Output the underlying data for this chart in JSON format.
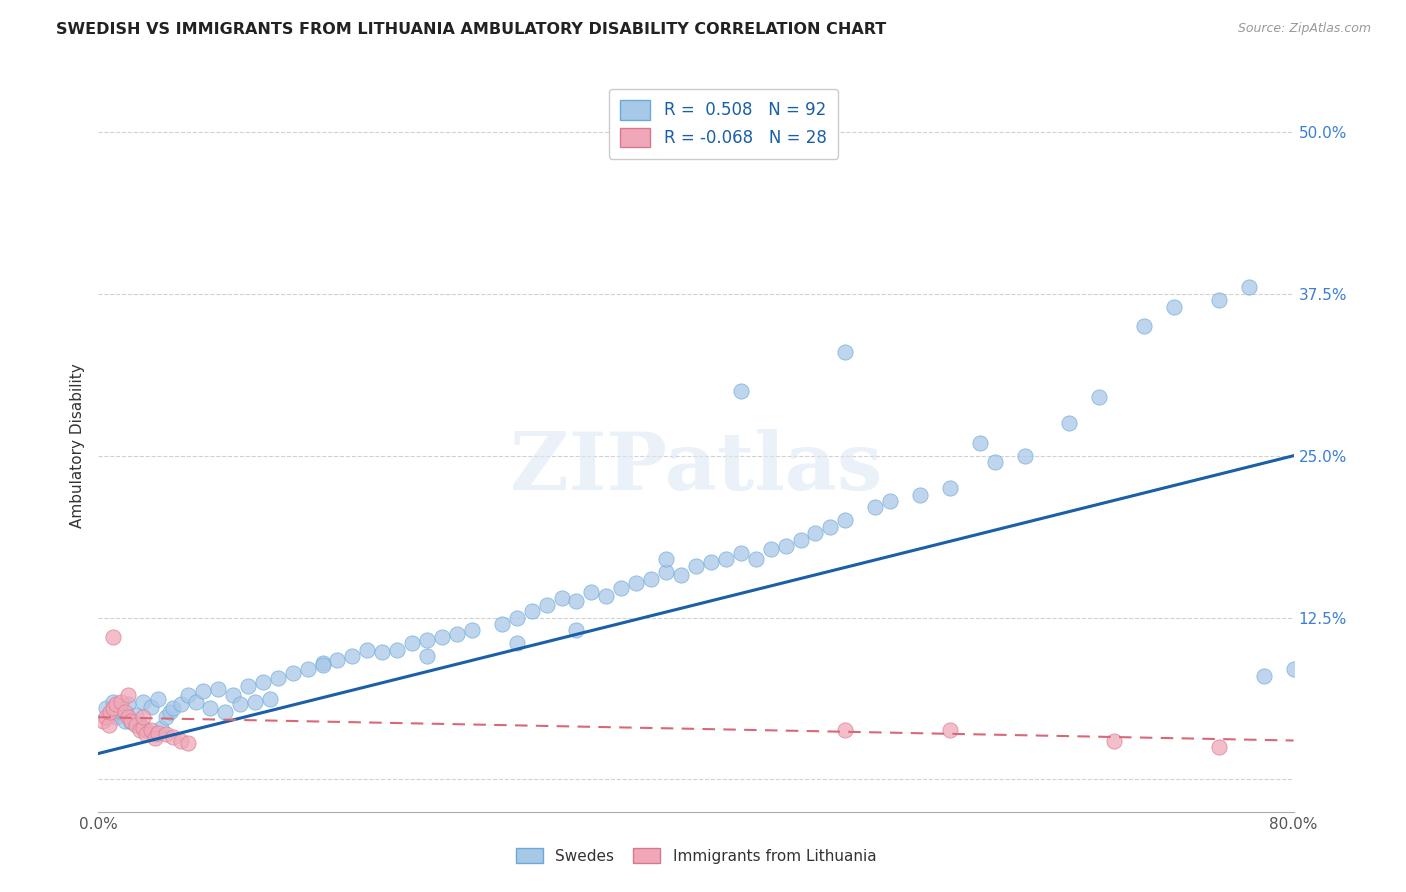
{
  "title": "SWEDISH VS IMMIGRANTS FROM LITHUANIA AMBULATORY DISABILITY CORRELATION CHART",
  "source": "Source: ZipAtlas.com",
  "ylabel": "Ambulatory Disability",
  "xlim": [
    0.0,
    0.8
  ],
  "ylim": [
    -0.025,
    0.54
  ],
  "blue_R": 0.508,
  "blue_N": 92,
  "pink_R": -0.068,
  "pink_N": 28,
  "blue_color": "#a8c8e8",
  "blue_edge_color": "#6aaad8",
  "pink_color": "#f0a8b8",
  "pink_edge_color": "#d87890",
  "trend_blue_color": "#1a5fa8",
  "trend_pink_color": "#d86878",
  "watermark": "ZIPatlas",
  "blue_trend_x0": 0.0,
  "blue_trend_y0": 0.02,
  "blue_trend_x1": 0.8,
  "blue_trend_y1": 0.25,
  "pink_trend_x0": 0.0,
  "pink_trend_y0": 0.048,
  "pink_trend_x1": 0.8,
  "pink_trend_y1": 0.03,
  "blue_scatter_x": [
    0.005,
    0.008,
    0.01,
    0.012,
    0.015,
    0.018,
    0.02,
    0.022,
    0.025,
    0.028,
    0.03,
    0.032,
    0.035,
    0.038,
    0.04,
    0.042,
    0.045,
    0.048,
    0.05,
    0.055,
    0.06,
    0.065,
    0.07,
    0.075,
    0.08,
    0.085,
    0.09,
    0.095,
    0.1,
    0.105,
    0.11,
    0.115,
    0.12,
    0.13,
    0.14,
    0.15,
    0.16,
    0.17,
    0.18,
    0.19,
    0.2,
    0.21,
    0.22,
    0.23,
    0.24,
    0.25,
    0.27,
    0.28,
    0.29,
    0.3,
    0.31,
    0.32,
    0.33,
    0.34,
    0.35,
    0.36,
    0.37,
    0.38,
    0.39,
    0.4,
    0.41,
    0.42,
    0.43,
    0.44,
    0.45,
    0.46,
    0.47,
    0.48,
    0.49,
    0.5,
    0.52,
    0.53,
    0.55,
    0.57,
    0.59,
    0.6,
    0.62,
    0.65,
    0.67,
    0.7,
    0.72,
    0.75,
    0.77,
    0.78,
    0.8,
    0.5,
    0.43,
    0.38,
    0.32,
    0.28,
    0.22,
    0.15
  ],
  "blue_scatter_y": [
    0.055,
    0.05,
    0.06,
    0.048,
    0.052,
    0.045,
    0.058,
    0.044,
    0.05,
    0.042,
    0.06,
    0.038,
    0.056,
    0.035,
    0.062,
    0.04,
    0.048,
    0.052,
    0.055,
    0.058,
    0.065,
    0.06,
    0.068,
    0.055,
    0.07,
    0.052,
    0.065,
    0.058,
    0.072,
    0.06,
    0.075,
    0.062,
    0.078,
    0.082,
    0.085,
    0.09,
    0.092,
    0.095,
    0.1,
    0.098,
    0.1,
    0.105,
    0.108,
    0.11,
    0.112,
    0.115,
    0.12,
    0.125,
    0.13,
    0.135,
    0.14,
    0.138,
    0.145,
    0.142,
    0.148,
    0.152,
    0.155,
    0.16,
    0.158,
    0.165,
    0.168,
    0.17,
    0.175,
    0.17,
    0.178,
    0.18,
    0.185,
    0.19,
    0.195,
    0.2,
    0.21,
    0.215,
    0.22,
    0.225,
    0.26,
    0.245,
    0.25,
    0.275,
    0.295,
    0.35,
    0.365,
    0.37,
    0.38,
    0.08,
    0.085,
    0.33,
    0.3,
    0.17,
    0.115,
    0.105,
    0.095,
    0.088
  ],
  "pink_scatter_x": [
    0.003,
    0.005,
    0.007,
    0.008,
    0.01,
    0.012,
    0.015,
    0.018,
    0.02,
    0.022,
    0.025,
    0.028,
    0.03,
    0.032,
    0.035,
    0.038,
    0.04,
    0.045,
    0.05,
    0.055,
    0.06,
    0.01,
    0.02,
    0.03,
    0.5,
    0.57,
    0.68,
    0.75
  ],
  "pink_scatter_y": [
    0.045,
    0.048,
    0.042,
    0.052,
    0.055,
    0.058,
    0.06,
    0.052,
    0.048,
    0.045,
    0.042,
    0.038,
    0.04,
    0.035,
    0.038,
    0.032,
    0.036,
    0.035,
    0.033,
    0.03,
    0.028,
    0.11,
    0.065,
    0.048,
    0.038,
    0.038,
    0.03,
    0.025
  ]
}
